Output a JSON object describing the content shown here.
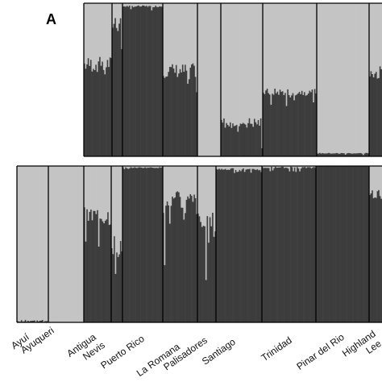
{
  "panel_label": "A",
  "colors": {
    "cluster_1": "#3d3d3d",
    "cluster_2": "#c4c4c4",
    "divider": "#000000"
  },
  "chart_data": [
    {
      "type": "bar",
      "stacked": true,
      "panel": "A",
      "ylim": [
        0,
        1
      ],
      "value_meaning": "proportion of dark cluster per individual",
      "populations": [
        {
          "index": 8,
          "mean_dark": 0.6
        },
        {
          "index": 9,
          "mean_dark": 0.88
        },
        {
          "index": 10,
          "mean_dark": 0.98
        },
        {
          "index": 11,
          "mean_dark": 0.56
        },
        {
          "index": 12,
          "mean_dark": 0.0
        },
        {
          "index": 13,
          "mean_dark": 0.22
        },
        {
          "index": 14,
          "mean_dark": 0.42
        },
        {
          "index": 15,
          "mean_dark": 0.02
        },
        {
          "index": 16,
          "mean_dark": 0.55
        }
      ]
    },
    {
      "type": "bar",
      "stacked": true,
      "panel": "B",
      "ylim": [
        0,
        1
      ],
      "value_meaning": "proportion of dark cluster per individual",
      "populations": [
        {
          "name": "Ayuí",
          "mean_dark": 0.01
        },
        {
          "name": "Ayuqueri",
          "mean_dark": 0.0
        },
        {
          "name": "Antigua",
          "mean_dark": 0.68
        },
        {
          "name": "Nevis",
          "mean_dark": 0.5
        },
        {
          "name": "Puerto Rico",
          "mean_dark": 0.99
        },
        {
          "name": "La Romana",
          "mean_dark": 0.76
        },
        {
          "name": "Palisadores",
          "mean_dark": 0.62
        },
        {
          "name": "Santiago",
          "mean_dark": 0.98
        },
        {
          "name": "Trinidad",
          "mean_dark": 0.99
        },
        {
          "name": "Pinar del Rio",
          "mean_dark": 1.0
        },
        {
          "name": "Highland",
          "mean_dark": 0.82
        },
        {
          "name": "Lee",
          "mean_dark": 0.8
        }
      ]
    }
  ]
}
